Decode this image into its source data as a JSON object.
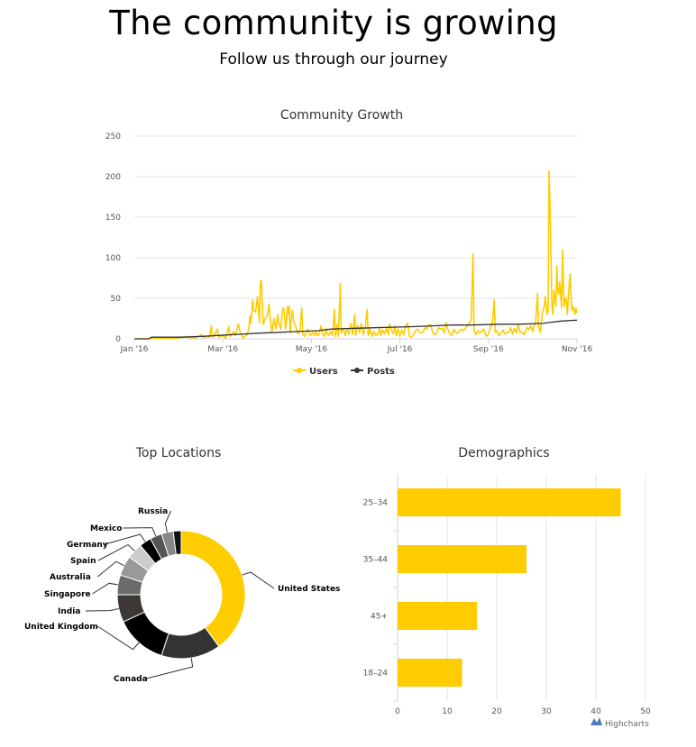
{
  "header": {
    "title": "The community is growing",
    "subtitle": "Follow us through our journey"
  },
  "colors": {
    "accent": "#ffcc00",
    "posts": "#333333",
    "grid": "#e6e6e6"
  },
  "credit": "Highcharts",
  "chart_data": [
    {
      "type": "line",
      "title": "Community Growth",
      "xlabel": "",
      "ylabel": "",
      "ylim": [
        0,
        250
      ],
      "yticks": [
        "0",
        "50",
        "100",
        "150",
        "200",
        "250"
      ],
      "xticks": [
        "Jan '16",
        "Mar '16",
        "May '16",
        "Jul '16",
        "Sep '16",
        "Nov '16"
      ],
      "x_range_days": [
        0,
        306
      ],
      "legend": [
        "Users",
        "Posts"
      ],
      "series": [
        {
          "name": "Users",
          "color": "#ffcc00",
          "points": [
            [
              0,
              0
            ],
            [
              10,
              0
            ],
            [
              25,
              1
            ],
            [
              35,
              0
            ],
            [
              45,
              1
            ],
            [
              55,
              3
            ],
            [
              58,
              1
            ],
            [
              60,
              3
            ],
            [
              62,
              0
            ],
            [
              65,
              2
            ],
            [
              70,
              5
            ],
            [
              72,
              1
            ],
            [
              75,
              3
            ],
            [
              78,
              2
            ],
            [
              80,
              16
            ],
            [
              81,
              2
            ],
            [
              84,
              6
            ],
            [
              86,
              12
            ],
            [
              88,
              2
            ],
            [
              92,
              4
            ],
            [
              95,
              1
            ],
            [
              98,
              15
            ],
            [
              100,
              3
            ],
            [
              103,
              9
            ],
            [
              105,
              4
            ],
            [
              108,
              18
            ],
            [
              110,
              8
            ],
            [
              113,
              1
            ],
            [
              117,
              5
            ],
            [
              119,
              12
            ],
            [
              120,
              28
            ],
            [
              121,
              19
            ],
            [
              123,
              48
            ],
            [
              124,
              35
            ],
            [
              126,
              33
            ],
            [
              128,
              52
            ],
            [
              130,
              20
            ],
            [
              131,
              70
            ],
            [
              132,
              72
            ],
            [
              133,
              40
            ],
            [
              134,
              18
            ],
            [
              136,
              25
            ],
            [
              138,
              28
            ],
            [
              140,
              43
            ],
            [
              141,
              27
            ],
            [
              143,
              8
            ],
            [
              145,
              25
            ],
            [
              147,
              12
            ],
            [
              149,
              30
            ],
            [
              150,
              20
            ],
            [
              152,
              12
            ],
            [
              154,
              35
            ],
            [
              155,
              38
            ],
            [
              156,
              30
            ],
            [
              157,
              12
            ],
            [
              158,
              20
            ],
            [
              159,
              40
            ],
            [
              160,
              30
            ],
            [
              161,
              40
            ],
            [
              162,
              8
            ],
            [
              164,
              35
            ],
            [
              166,
              20
            ],
            [
              168,
              14
            ],
            [
              170,
              6
            ],
            [
              172,
              10
            ],
            [
              174,
              38
            ],
            [
              175,
              6
            ],
            [
              177,
              3
            ],
            [
              180,
              12
            ],
            [
              183,
              4
            ],
            [
              185,
              8
            ],
            [
              187,
              4
            ],
            [
              189,
              10
            ],
            [
              190,
              4
            ],
            [
              192,
              5
            ],
            [
              194,
              16
            ],
            [
              196,
              5
            ],
            [
              198,
              3
            ],
            [
              199,
              13
            ],
            [
              200,
              8
            ],
            [
              202,
              4
            ],
            [
              204,
              9
            ],
            [
              206,
              4
            ],
            [
              208,
              36
            ],
            [
              209,
              3
            ],
            [
              211,
              18
            ],
            [
              212,
              3
            ],
            [
              214,
              68
            ],
            [
              215,
              7
            ],
            [
              217,
              13
            ],
            [
              219,
              4
            ],
            [
              221,
              12
            ],
            [
              223,
              6
            ],
            [
              225,
              19
            ],
            [
              227,
              5
            ],
            [
              229,
              30
            ],
            [
              230,
              4
            ],
            [
              232,
              17
            ],
            [
              234,
              8
            ],
            [
              236,
              19
            ],
            [
              238,
              5
            ],
            [
              240,
              14
            ],
            [
              242,
              36
            ],
            [
              243,
              4
            ],
            [
              245,
              12
            ],
            [
              247,
              3
            ],
            [
              249,
              9
            ],
            [
              251,
              4
            ],
            [
              253,
              6
            ],
            [
              255,
              13
            ],
            [
              256,
              4
            ],
            [
              258,
              11
            ],
            [
              260,
              6
            ],
            [
              262,
              13
            ],
            [
              264,
              5
            ],
            [
              265,
              18
            ],
            [
              267,
              12
            ],
            [
              269,
              6
            ],
            [
              271,
              16
            ],
            [
              272,
              4
            ],
            [
              274,
              12
            ],
            [
              276,
              3
            ],
            [
              278,
              11
            ],
            [
              280,
              5
            ],
            [
              282,
              16
            ],
            [
              284,
              19
            ],
            [
              286,
              3
            ],
            [
              288,
              2
            ],
            [
              290,
              5
            ],
            [
              292,
              10
            ],
            [
              294,
              12
            ],
            [
              296,
              9
            ],
            [
              298,
              7
            ],
            [
              300,
              8
            ],
            [
              302,
              14
            ],
            [
              304,
              12
            ],
            [
              306,
              17
            ],
            [
              308,
              17
            ],
            [
              310,
              8
            ],
            [
              312,
              5
            ],
            [
              314,
              7
            ],
            [
              316,
              14
            ],
            [
              318,
              12
            ],
            [
              320,
              13
            ],
            [
              322,
              7
            ],
            [
              324,
              20
            ],
            [
              326,
              11
            ],
            [
              328,
              6
            ],
            [
              330,
              4
            ],
            [
              332,
              12
            ],
            [
              334,
              8
            ],
            [
              336,
              7
            ],
            [
              338,
              10
            ],
            [
              340,
              12
            ],
            [
              342,
              10
            ],
            [
              344,
              13
            ],
            [
              346,
              16
            ],
            [
              348,
              20
            ],
            [
              350,
              22
            ],
            [
              352,
              105
            ],
            [
              353,
              9
            ],
            [
              354,
              8
            ],
            [
              355,
              5
            ],
            [
              357,
              10
            ],
            [
              359,
              7
            ],
            [
              361,
              9
            ],
            [
              363,
              12
            ],
            [
              364,
              8
            ],
            [
              366,
              3
            ],
            [
              368,
              6
            ],
            [
              370,
              14
            ],
            [
              372,
              18
            ],
            [
              374,
              48
            ],
            [
              375,
              8
            ],
            [
              377,
              10
            ],
            [
              379,
              4
            ],
            [
              381,
              7
            ],
            [
              383,
              11
            ],
            [
              385,
              6
            ],
            [
              387,
              8
            ],
            [
              389,
              8
            ],
            [
              391,
              14
            ],
            [
              393,
              6
            ],
            [
              395,
              13
            ],
            [
              397,
              7
            ],
            [
              399,
              17
            ],
            [
              401,
              8
            ],
            [
              403,
              8
            ],
            [
              405,
              5
            ],
            [
              407,
              10
            ],
            [
              408,
              14
            ],
            [
              410,
              11
            ],
            [
              412,
              16
            ],
            [
              414,
              9
            ],
            [
              415,
              15
            ],
            [
              417,
              20
            ],
            [
              419,
              56
            ],
            [
              420,
              14
            ],
            [
              422,
              8
            ],
            [
              424,
              32
            ],
            [
              426,
              40
            ],
            [
              427,
              52
            ],
            [
              429,
              30
            ],
            [
              430,
              35
            ],
            [
              431,
              207
            ],
            [
              432,
              160
            ],
            [
              433,
              100
            ],
            [
              434,
              40
            ],
            [
              435,
              30
            ],
            [
              436,
              60
            ],
            [
              437,
              50
            ],
            [
              438,
              40
            ],
            [
              439,
              90
            ],
            [
              440,
              60
            ],
            [
              441,
              55
            ],
            [
              442,
              70
            ],
            [
              443,
              55
            ],
            [
              444,
              38
            ],
            [
              445,
              110
            ],
            [
              446,
              58
            ],
            [
              447,
              40
            ],
            [
              448,
              50
            ],
            [
              449,
              48
            ],
            [
              450,
              30
            ],
            [
              451,
              50
            ],
            [
              452,
              70
            ],
            [
              453,
              80
            ],
            [
              454,
              45
            ],
            [
              455,
              35
            ],
            [
              456,
              40
            ],
            [
              457,
              35
            ],
            [
              458,
              30
            ],
            [
              459,
              38
            ],
            [
              460,
              32
            ]
          ],
          "x_unit": "index (0–460 spans Jan 1 – Nov 1 '16)"
        },
        {
          "name": "Posts",
          "color": "#333333",
          "points": [
            [
              0,
              0
            ],
            [
              15,
              0
            ],
            [
              18,
              2
            ],
            [
              50,
              2
            ],
            [
              70,
              3
            ],
            [
              100,
              5
            ],
            [
              130,
              7
            ],
            [
              150,
              8
            ],
            [
              170,
              9
            ],
            [
              190,
              10
            ],
            [
              205,
              12
            ],
            [
              230,
              13
            ],
            [
              260,
              14
            ],
            [
              290,
              15
            ],
            [
              310,
              16
            ],
            [
              330,
              17
            ],
            [
              350,
              17
            ],
            [
              380,
              18
            ],
            [
              400,
              18
            ],
            [
              425,
              19
            ],
            [
              430,
              20
            ],
            [
              445,
              22
            ],
            [
              460,
              23
            ]
          ],
          "x_unit": "index (0–460 spans Jan 1 – Nov 1 '16)"
        }
      ]
    },
    {
      "type": "pie",
      "title": "Top Locations",
      "slices": [
        {
          "label": "United States",
          "value": 40,
          "color": "#ffcc00"
        },
        {
          "label": "Canada",
          "value": 15,
          "color": "#333333"
        },
        {
          "label": "United Kingdom",
          "value": 13,
          "color": "#000000"
        },
        {
          "label": "India",
          "value": 7,
          "color": "#3d3835"
        },
        {
          "label": "Singapore",
          "value": 5,
          "color": "#6b6b6b"
        },
        {
          "label": "Australia",
          "value": 5,
          "color": "#999999"
        },
        {
          "label": "Spain",
          "value": 4,
          "color": "#cccccc"
        },
        {
          "label": "Germany",
          "value": 3,
          "color": "#000000"
        },
        {
          "label": "Mexico",
          "value": 3,
          "color": "#555555"
        },
        {
          "label": "Russia",
          "value": 3,
          "color": "#888888"
        },
        {
          "label": "",
          "value": 2,
          "color": "#111111"
        }
      ]
    },
    {
      "type": "bar",
      "title": "Demographics",
      "categories": [
        "25–34",
        "35–44",
        "45+",
        "18–24"
      ],
      "values": [
        45,
        26,
        16,
        13
      ],
      "xlim": [
        0,
        50
      ],
      "xticks": [
        "0",
        "10",
        "20",
        "30",
        "40",
        "50"
      ],
      "color": "#ffcc00"
    }
  ]
}
